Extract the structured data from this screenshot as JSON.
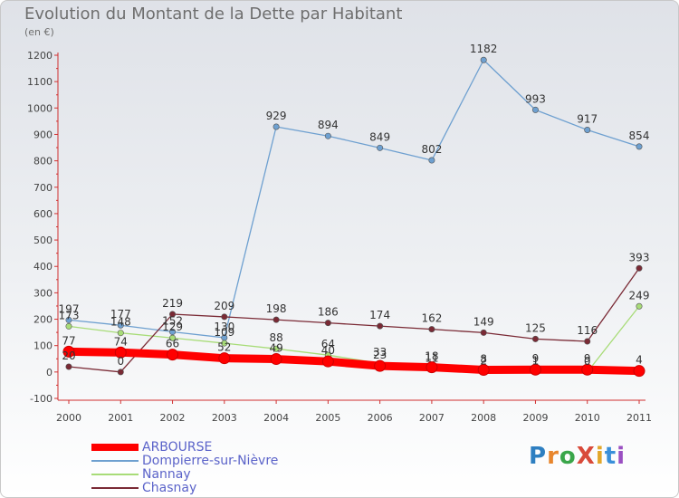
{
  "title": "Evolution du Montant de la Dette par Habitant",
  "unit_label": "(en €)",
  "logo": {
    "text": "ProXiti",
    "letter_colors": [
      "#2e7fc1",
      "#e8862d",
      "#3aa64a",
      "#d94a3a",
      "#e2a72b",
      "#3a8fd9",
      "#9a4fc2"
    ]
  },
  "chart_data": {
    "type": "line",
    "x": [
      "2000",
      "2001",
      "2002",
      "2003",
      "2004",
      "2005",
      "2006",
      "2007",
      "2008",
      "2009",
      "2010",
      "2011"
    ],
    "ylim": [
      -100,
      1200
    ],
    "yticks": [
      -100,
      0,
      100,
      200,
      300,
      400,
      500,
      600,
      700,
      800,
      900,
      1000,
      1100,
      1200
    ],
    "grid": false,
    "legend_position": "bottom-left",
    "series": [
      {
        "name": "ARBOURSE",
        "color": "#ff0000",
        "values": [
          77,
          74,
          66,
          52,
          49,
          40,
          23,
          18,
          8,
          9,
          9,
          4
        ],
        "labels": [
          "77",
          "74",
          "66",
          "52",
          "49",
          "40",
          "23",
          "18",
          "8",
          "9",
          "9",
          "4"
        ]
      },
      {
        "name": "Dompierre-sur-Nièvre",
        "color": "#6ea0d0",
        "values": [
          197,
          177,
          152,
          130,
          929,
          894,
          849,
          802,
          1182,
          993,
          917,
          854
        ],
        "labels": [
          "197",
          "177",
          "152",
          "130",
          "929",
          "894",
          "849",
          "802",
          "1182",
          "993",
          "917",
          "854"
        ]
      },
      {
        "name": "Nannay",
        "color": "#a8dc78",
        "values": [
          173,
          148,
          129,
          109,
          88,
          64,
          33,
          11,
          2,
          1,
          0,
          249
        ],
        "labels": [
          "173",
          "148",
          "129",
          "109",
          "88",
          "64",
          "33",
          "11",
          "2",
          "1",
          "0",
          "249"
        ]
      },
      {
        "name": "Chasnay",
        "color": "#7a2a35",
        "values": [
          20,
          0,
          219,
          209,
          198,
          186,
          174,
          162,
          149,
          125,
          116,
          393
        ],
        "labels": [
          "20",
          "0",
          "219",
          "209",
          "198",
          "186",
          "174",
          "162",
          "149",
          "125",
          "116",
          "393"
        ]
      }
    ]
  }
}
